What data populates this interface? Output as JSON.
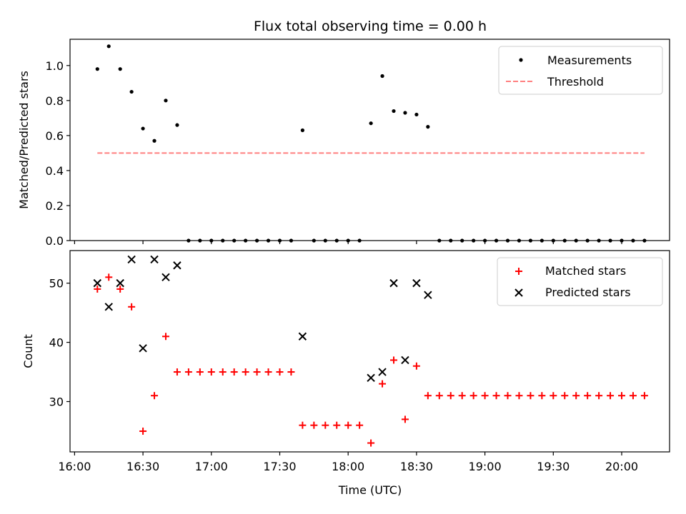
{
  "chart_data": [
    {
      "type": "scatter",
      "title": "Flux total observing time = 0.00 h",
      "xlabel": "",
      "ylabel": "Matched/Predicted stars",
      "ylim": [
        0,
        1.15
      ],
      "yticks": [
        "0.0",
        "0.2",
        "0.4",
        "0.6",
        "0.8",
        "1.0"
      ],
      "yticks_values": [
        0,
        0.2,
        0.4,
        0.6,
        0.8,
        1.0
      ],
      "legend_position": "top-right",
      "grid": false,
      "series": [
        {
          "name": "Measurements",
          "kind": "scatter",
          "marker": "dot",
          "color": "#000000",
          "x": [
            "16:10",
            "16:15",
            "16:20",
            "16:25",
            "16:30",
            "16:35",
            "16:40",
            "16:45",
            "16:50",
            "16:55",
            "17:00",
            "17:05",
            "17:10",
            "17:15",
            "17:20",
            "17:25",
            "17:30",
            "17:35",
            "17:40",
            "17:45",
            "17:50",
            "17:55",
            "18:00",
            "18:05",
            "18:10",
            "18:15",
            "18:20",
            "18:25",
            "18:30",
            "18:35",
            "18:40",
            "18:45",
            "18:50",
            "18:55",
            "19:00",
            "19:05",
            "19:10",
            "19:15",
            "19:20",
            "19:25",
            "19:30",
            "19:35",
            "19:40",
            "19:45",
            "19:50",
            "19:55",
            "20:00",
            "20:05",
            "20:10"
          ],
          "y": [
            0.98,
            1.11,
            0.98,
            0.85,
            0.64,
            0.57,
            0.8,
            0.66,
            0,
            0,
            0,
            0,
            0,
            0,
            0,
            0,
            0,
            0,
            0.63,
            0,
            0,
            0,
            0,
            0,
            0.67,
            0.94,
            0.74,
            0.73,
            0.72,
            0.65,
            0,
            0,
            0,
            0,
            0,
            0,
            0,
            0,
            0,
            0,
            0,
            0,
            0,
            0,
            0,
            0,
            0,
            0,
            0
          ]
        },
        {
          "name": "Threshold",
          "kind": "line",
          "dash": "dashed",
          "color": "#ff7f7f",
          "x": [
            "16:10",
            "20:10"
          ],
          "y": [
            0.5,
            0.5
          ]
        }
      ]
    },
    {
      "type": "scatter",
      "title": "",
      "xlabel": "Time (UTC)",
      "ylabel": "Count",
      "ylim": [
        21.5,
        55.5
      ],
      "yticks": [
        "30",
        "40",
        "50"
      ],
      "yticks_values": [
        30,
        40,
        50
      ],
      "xticks": [
        "16:00",
        "16:30",
        "17:00",
        "17:30",
        "18:00",
        "18:30",
        "19:00",
        "19:30",
        "20:00"
      ],
      "xlim": [
        "15:58",
        "20:21"
      ],
      "legend_position": "top-right",
      "grid": false,
      "series": [
        {
          "name": "Matched stars",
          "kind": "scatter",
          "marker": "plus",
          "color": "#ff0000",
          "x": [
            "16:10",
            "16:15",
            "16:20",
            "16:25",
            "16:30",
            "16:35",
            "16:40",
            "16:45",
            "16:50",
            "16:55",
            "17:00",
            "17:05",
            "17:10",
            "17:15",
            "17:20",
            "17:25",
            "17:30",
            "17:35",
            "17:40",
            "17:45",
            "17:50",
            "17:55",
            "18:00",
            "18:05",
            "18:10",
            "18:15",
            "18:20",
            "18:25",
            "18:30",
            "18:35",
            "18:40",
            "18:45",
            "18:50",
            "18:55",
            "19:00",
            "19:05",
            "19:10",
            "19:15",
            "19:20",
            "19:25",
            "19:30",
            "19:35",
            "19:40",
            "19:45",
            "19:50",
            "19:55",
            "20:00",
            "20:05",
            "20:10"
          ],
          "y": [
            49,
            51,
            49,
            46,
            25,
            31,
            41,
            35,
            35,
            35,
            35,
            35,
            35,
            35,
            35,
            35,
            35,
            35,
            26,
            26,
            26,
            26,
            26,
            26,
            23,
            33,
            37,
            27,
            36,
            31,
            31,
            31,
            31,
            31,
            31,
            31,
            31,
            31,
            31,
            31,
            31,
            31,
            31,
            31,
            31,
            31,
            31,
            31,
            31
          ]
        },
        {
          "name": "Predicted stars",
          "kind": "scatter",
          "marker": "x",
          "color": "#000000",
          "x": [
            "16:10",
            "16:15",
            "16:20",
            "16:25",
            "16:30",
            "16:35",
            "16:40",
            "16:45",
            "17:40",
            "18:10",
            "18:15",
            "18:20",
            "18:25",
            "18:30",
            "18:35"
          ],
          "y": [
            50,
            46,
            50,
            54,
            39,
            54,
            51,
            53,
            41,
            34,
            35,
            50,
            37,
            50,
            48
          ]
        }
      ]
    }
  ]
}
